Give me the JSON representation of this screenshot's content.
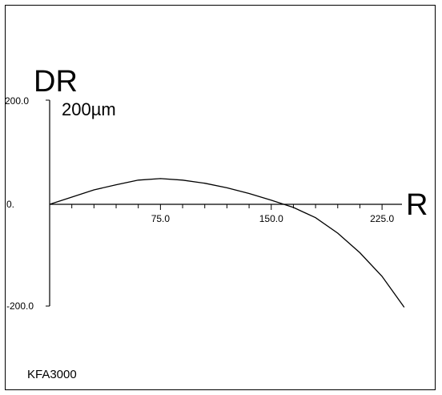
{
  "chart_data": {
    "type": "line",
    "xlabel": "R",
    "ylabel": "DR",
    "unit_label": "200µm",
    "model_label": "KFA3000",
    "xlim": [
      0,
      240
    ],
    "ylim": [
      -200,
      200
    ],
    "x_tick_labels": [
      "75.0",
      "150.0",
      "225.0"
    ],
    "x_tick_values": [
      75,
      150,
      225
    ],
    "y_tick_labels": [
      "200.0",
      "0.",
      "-200.0"
    ],
    "y_tick_values": [
      200,
      0,
      -200
    ],
    "series": [
      {
        "x": [
          0,
          15,
          30,
          45,
          60,
          75,
          90,
          105,
          120,
          135,
          150,
          165,
          180,
          195,
          210,
          225,
          240
        ],
        "y": [
          0,
          14,
          28,
          38,
          47,
          50,
          47,
          41,
          32,
          21,
          8,
          -6,
          -26,
          -56,
          -94,
          -140,
          -200
        ]
      }
    ]
  }
}
